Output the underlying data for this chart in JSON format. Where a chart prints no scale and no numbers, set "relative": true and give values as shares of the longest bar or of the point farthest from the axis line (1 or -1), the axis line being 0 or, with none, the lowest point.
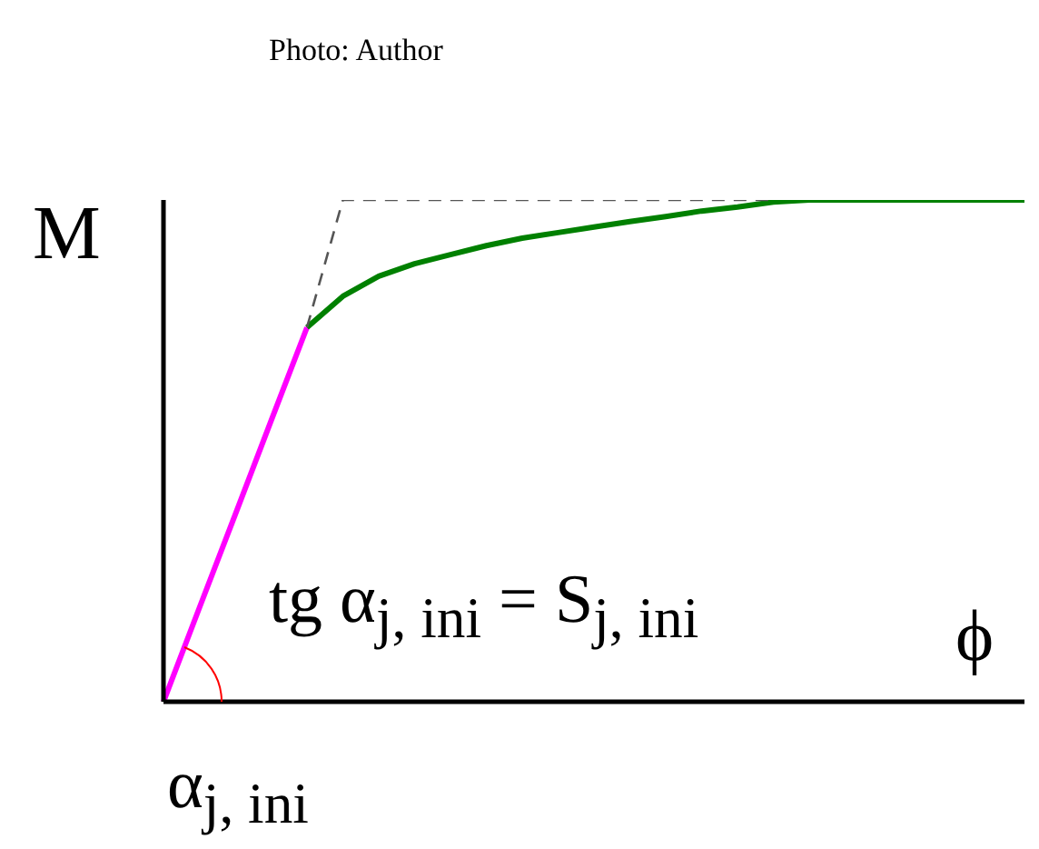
{
  "chart_data": {
    "type": "line",
    "relative": true,
    "xlabel": "ϕ",
    "ylabel": "M",
    "categories": [
      null,
      null,
      null,
      null,
      null,
      null,
      null,
      null,
      null,
      null,
      null,
      null,
      null,
      null,
      null,
      null,
      null,
      null,
      null,
      null,
      null,
      null,
      null,
      null,
      null
    ],
    "series": [
      {
        "color": "#ff00ff",
        "line_style": "solid",
        "values": [
          0,
          0.187,
          0.373,
          0.56,
          0.746,
          null,
          null,
          null,
          null,
          null,
          null,
          null,
          null,
          null,
          null,
          null,
          null,
          null,
          null,
          null,
          null,
          null,
          null,
          null,
          null
        ]
      },
      {
        "color": "#008000",
        "line_style": "solid",
        "values": [
          null,
          null,
          null,
          null,
          0.746,
          0.808,
          0.848,
          0.873,
          0.891,
          0.909,
          0.924,
          0.935,
          0.946,
          0.957,
          0.967,
          0.978,
          0.986,
          0.996,
          1,
          1,
          1,
          1,
          1,
          1,
          1
        ]
      },
      {
        "color": "#555555",
        "line_style": "dashed",
        "values": [
          null,
          null,
          null,
          null,
          0.746,
          1,
          1,
          1,
          1,
          1,
          1,
          1,
          1,
          1,
          1,
          1,
          1,
          1,
          null,
          null,
          null,
          null,
          null,
          null,
          null
        ]
      }
    ],
    "annotations": [
      "Photo: Author",
      "tg α$_{j, ini}$ = S$_{j, ini}$",
      "α$_{j, ini}$"
    ],
    "grid": false,
    "legend": false,
    "marker": "none",
    "tick_labels": false
  }
}
